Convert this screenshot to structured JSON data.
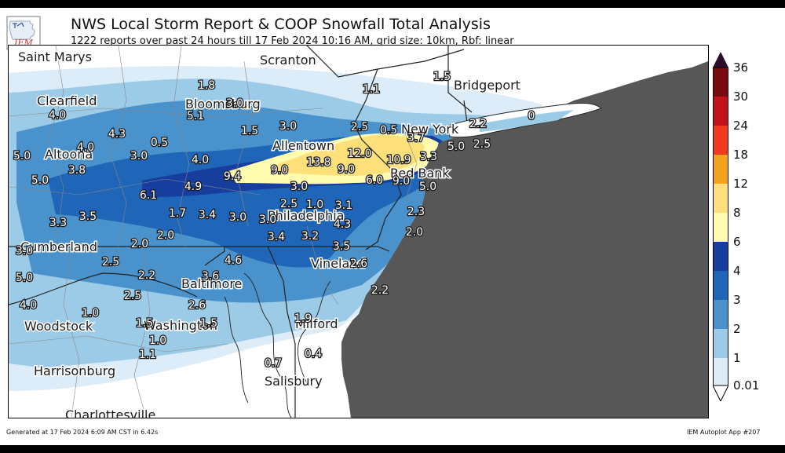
{
  "header": {
    "logo_text": "IEM",
    "title": "NWS Local Storm Report & COOP Snowfall Total Analysis",
    "subtitle": "1222 reports over past 24 hours till 17 Feb 2024 10:16 AM, grid size: 10km, Rbf: linear"
  },
  "colorbar": {
    "levels": [
      "36",
      "30",
      "24",
      "18",
      "12",
      "8",
      "6",
      "4",
      "3",
      "2",
      "1",
      "0.01"
    ],
    "colors": [
      "#2b0a2b",
      "#7a0a10",
      "#c2121a",
      "#ef3a1e",
      "#f5a31c",
      "#fde07a",
      "#fffcb0",
      "#173d9e",
      "#1f66b8",
      "#4a92cc",
      "#9ccbe8",
      "#dcecf8"
    ]
  },
  "colors": {
    "ocean": "#575757",
    "land": "#ffffff"
  },
  "map": {
    "cities": [
      {
        "name": "Saint Marys"
      },
      {
        "name": "Scranton"
      },
      {
        "name": "Bridgeport"
      },
      {
        "name": "Clearfield"
      },
      {
        "name": "Bloomsburg"
      },
      {
        "name": "Altoona"
      },
      {
        "name": "Allentown"
      },
      {
        "name": "New York"
      },
      {
        "name": "Red Bank"
      },
      {
        "name": "Philadelphia"
      },
      {
        "name": "Cumberland"
      },
      {
        "name": "Baltimore"
      },
      {
        "name": "Vineland"
      },
      {
        "name": "Woodstock"
      },
      {
        "name": "Washington"
      },
      {
        "name": "Milford"
      },
      {
        "name": "Harrisonburg"
      },
      {
        "name": "Salisbury"
      },
      {
        "name": "Charlottesville"
      }
    ],
    "values": [
      "1.8",
      "3.0",
      "1.1",
      "1.5",
      "4.0",
      "5.1",
      "1.5",
      "3.0",
      "2.5",
      "0.5",
      "3.7",
      "2.2",
      "0",
      "4.3",
      "0.5",
      "12.0",
      "3.3",
      "5.0",
      "2.5",
      "5.0",
      "4.0",
      "3.0",
      "4.0",
      "13.8",
      "9.0",
      "10.9",
      "5.0",
      "3.8",
      "9.4",
      "9.0",
      "6.0",
      "9.0",
      "5.0",
      "6.1",
      "4.9",
      "3.0",
      "3.3",
      "3.5",
      "1.7",
      "3.4",
      "3.0",
      "3.0",
      "2.5",
      "1.0",
      "3.1",
      "2.3",
      "4.3",
      "2.0",
      "3.4",
      "3.2",
      "2.0",
      "2.0",
      "3.0",
      "3.5",
      "2.5",
      "4.6",
      "2.6",
      "5.0",
      "2.2",
      "3.6",
      "2.5",
      "2.6",
      "2.2",
      "4.0",
      "1.0",
      "1.5",
      "1.5",
      "1.9",
      "1.0",
      "1.1",
      "0.4",
      "0.7"
    ]
  },
  "footer": {
    "left": "Generated at 17 Feb 2024 6:09 AM CST in 6.42s",
    "right": "IEM Autoplot App #207"
  }
}
